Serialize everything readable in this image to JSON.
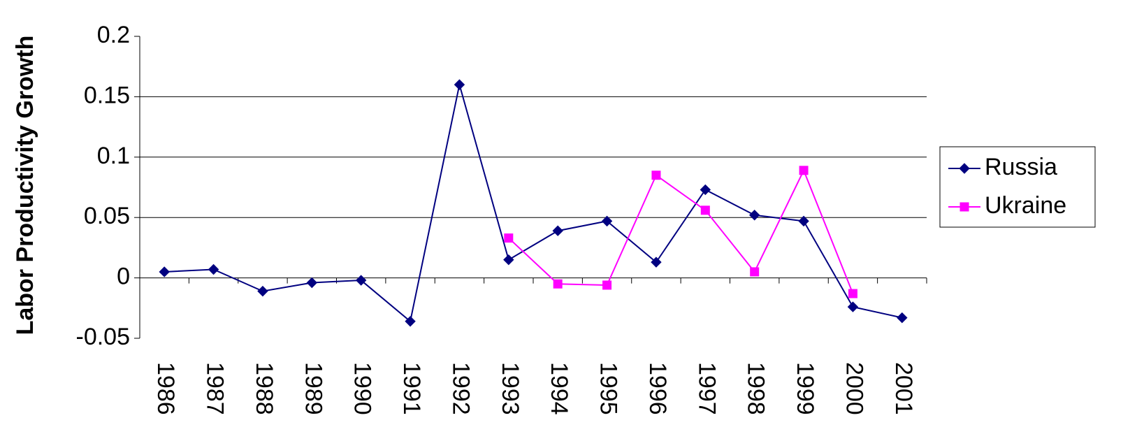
{
  "chart_data": {
    "type": "line",
    "y_label": "Labor Productivity Growth",
    "categories": [
      "1986",
      "1987",
      "1988",
      "1989",
      "1990",
      "1991",
      "1992",
      "1993",
      "1994",
      "1995",
      "1996",
      "1997",
      "1998",
      "1999",
      "2000",
      "2001"
    ],
    "series": [
      {
        "name": "Russia",
        "color": "#000080",
        "marker": "diamond",
        "values": [
          0.005,
          0.007,
          -0.011,
          -0.004,
          -0.002,
          -0.036,
          0.16,
          0.015,
          0.039,
          0.047,
          0.013,
          0.073,
          0.052,
          0.047,
          -0.024,
          -0.033
        ]
      },
      {
        "name": "Ukraine",
        "color": "#ff00ff",
        "marker": "square",
        "values": [
          null,
          null,
          null,
          null,
          null,
          null,
          null,
          0.033,
          -0.005,
          -0.006,
          0.085,
          0.056,
          0.005,
          0.089,
          -0.013,
          null
        ]
      }
    ],
    "ylim": [
      -0.05,
      0.2
    ],
    "yticks": [
      -0.05,
      0,
      0.05,
      0.1,
      0.15,
      0.2
    ],
    "grid": true,
    "legend": "right"
  }
}
